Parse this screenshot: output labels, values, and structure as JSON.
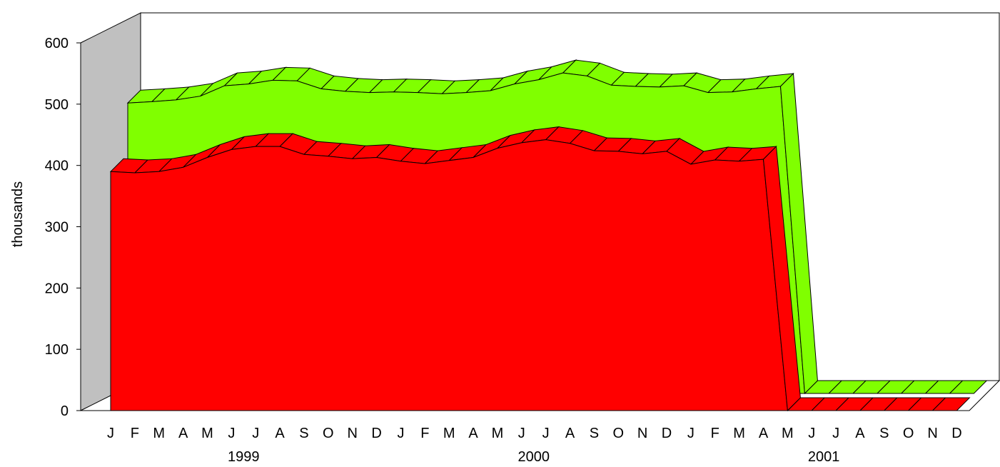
{
  "chart_data": {
    "type": "area",
    "title": "",
    "xlabel": "",
    "ylabel": "thousands",
    "ylim": [
      0,
      600
    ],
    "yticks": [
      0,
      100,
      200,
      300,
      400,
      500,
      600
    ],
    "grid": false,
    "legend": "none",
    "style": "3d",
    "categories": [
      "J",
      "F",
      "M",
      "A",
      "M",
      "J",
      "J",
      "A",
      "S",
      "O",
      "N",
      "D",
      "J",
      "F",
      "M",
      "A",
      "M",
      "J",
      "J",
      "A",
      "S",
      "O",
      "N",
      "D",
      "J",
      "F",
      "M",
      "A",
      "M",
      "J",
      "J",
      "A",
      "S",
      "O",
      "N",
      "D"
    ],
    "year_labels": [
      {
        "label": "1999",
        "center_index": 5.5
      },
      {
        "label": "2000",
        "center_index": 17.5
      },
      {
        "label": "2001",
        "center_index": 29.5
      }
    ],
    "series": [
      {
        "color": "#ff0000",
        "values": [
          390,
          388,
          390,
          397,
          413,
          426,
          431,
          431,
          418,
          415,
          411,
          413,
          407,
          403,
          408,
          413,
          428,
          437,
          442,
          436,
          424,
          423,
          419,
          423,
          402,
          409,
          407,
          410,
          0,
          0,
          0,
          0,
          0,
          0,
          0,
          0
        ]
      },
      {
        "color": "#80ff00",
        "values": [
          474,
          476,
          479,
          485,
          502,
          505,
          511,
          510,
          497,
          493,
          491,
          492,
          491,
          489,
          491,
          494,
          505,
          512,
          523,
          518,
          503,
          501,
          500,
          502,
          491,
          492,
          497,
          501,
          0,
          0,
          0,
          0,
          0,
          0,
          0,
          0
        ]
      }
    ],
    "colors": {
      "back_wall": "#ffffff",
      "side_wall": "#c0c0c0",
      "floor": "#ffffff",
      "outline": "#000000"
    }
  }
}
